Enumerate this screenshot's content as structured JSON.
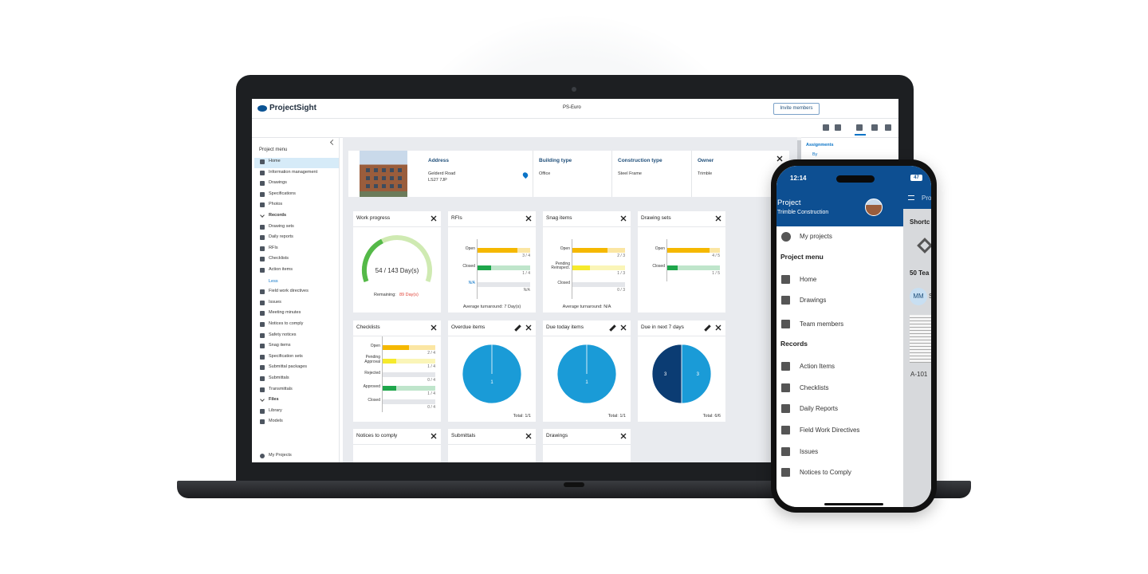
{
  "app": {
    "logo": "ProjectSight",
    "project": "PS-Euro",
    "invite": "Invite members"
  },
  "sidebar": {
    "title": "Project menu",
    "items": [
      {
        "text": "Home",
        "kind": "active"
      },
      {
        "text": "Information management",
        "kind": "item"
      },
      {
        "text": "Drawings",
        "kind": "item"
      },
      {
        "text": "Specifications",
        "kind": "item"
      },
      {
        "text": "Photos",
        "kind": "item"
      },
      {
        "text": "Records",
        "kind": "group"
      },
      {
        "text": "Drawing sets",
        "kind": "item"
      },
      {
        "text": "Daily reports",
        "kind": "item"
      },
      {
        "text": "RFIs",
        "kind": "item"
      },
      {
        "text": "Checklists",
        "kind": "item"
      },
      {
        "text": "Action items",
        "kind": "item"
      },
      {
        "text": "Less",
        "kind": "toggle"
      },
      {
        "text": "Field work directives",
        "kind": "item"
      },
      {
        "text": "Issues",
        "kind": "item"
      },
      {
        "text": "Meeting minutes",
        "kind": "item"
      },
      {
        "text": "Notices to comply",
        "kind": "item"
      },
      {
        "text": "Safety notices",
        "kind": "item"
      },
      {
        "text": "Snag items",
        "kind": "item"
      },
      {
        "text": "Specification sets",
        "kind": "item"
      },
      {
        "text": "Submittal packages",
        "kind": "item"
      },
      {
        "text": "Submittals",
        "kind": "item"
      },
      {
        "text": "Transmittals",
        "kind": "item"
      },
      {
        "text": "Files",
        "kind": "group"
      },
      {
        "text": "Library",
        "kind": "item"
      },
      {
        "text": "Models",
        "kind": "item"
      }
    ],
    "footer": "My Projects"
  },
  "project_info": {
    "fields": [
      {
        "label": "Address",
        "lines": [
          "Gelderd Road",
          "LS27 7JP"
        ]
      },
      {
        "label": "Building type",
        "lines": [
          "Office"
        ]
      },
      {
        "label": "Construction type",
        "lines": [
          "Steel Frame"
        ]
      },
      {
        "label": "Owner",
        "lines": [
          "Trimble"
        ]
      }
    ]
  },
  "right_panel": {
    "title": "Assignments",
    "by": "By"
  },
  "widgets": [
    {
      "title": "Work progress",
      "type": "gauge",
      "value": 54,
      "total": 143,
      "value_label": "54 / 143 Day(s)",
      "remaining_label": "Remaining:",
      "remaining": "89 Day(s)"
    },
    {
      "title": "RFIs",
      "type": "bars",
      "rows": [
        {
          "label": "Open",
          "value": 3,
          "total": 4,
          "value_label": "3 / 4",
          "color": "#f5b800",
          "track": "#fbe6a3"
        },
        {
          "label": "Closed",
          "value": 1,
          "total": 4,
          "value_label": "1 / 4",
          "color": "#1ea64b",
          "track": "#bfe5cb"
        },
        {
          "label": "N/A",
          "value": null,
          "total": null,
          "value_label": "N/A",
          "color": "#cfd3da",
          "track": "#e4e6ea"
        }
      ],
      "footer": "Average turnaround: 7 Day(s)"
    },
    {
      "title": "Snag items",
      "type": "bars",
      "rows": [
        {
          "label": "Open",
          "value": 2,
          "total": 3,
          "value_label": "2 / 3",
          "color": "#f5b800",
          "track": "#fbe6a3"
        },
        {
          "label": "Pending Reinspect.",
          "value": 1,
          "total": 3,
          "value_label": "1 / 3",
          "color": "#f6ea2c",
          "track": "#faf5b8"
        },
        {
          "label": "Closed",
          "value": 0,
          "total": 3,
          "value_label": "0 / 3",
          "color": "#1ea64b",
          "track": "#e4e6ea"
        }
      ],
      "footer": "Average turnaround: N/A"
    },
    {
      "title": "Drawing sets",
      "type": "bars",
      "rows": [
        {
          "label": "Open",
          "value": 4,
          "total": 5,
          "value_label": "4 / 5",
          "color": "#f5b800",
          "track": "#fbe6a3"
        },
        {
          "label": "Closed",
          "value": 1,
          "total": 5,
          "value_label": "1 / 5",
          "color": "#1ea64b",
          "track": "#bfe5cb"
        }
      ]
    },
    {
      "title": "Checklists",
      "type": "bars",
      "rows": [
        {
          "label": "Open",
          "value": 2,
          "total": 4,
          "value_label": "2 / 4",
          "color": "#f5b800",
          "track": "#fbe6a3"
        },
        {
          "label": "Pending Approval",
          "value": 1,
          "total": 4,
          "value_label": "1 / 4",
          "color": "#f6ea2c",
          "track": "#faf5b8"
        },
        {
          "label": "Rejected",
          "value": 0,
          "total": 4,
          "value_label": "0 / 4",
          "color": "#d9534f",
          "track": "#e4e6ea"
        },
        {
          "label": "Approved",
          "value": 1,
          "total": 4,
          "value_label": "1 / 4",
          "color": "#1ea64b",
          "track": "#bfe5cb"
        },
        {
          "label": "Closed",
          "value": 0,
          "total": 4,
          "value_label": "0 / 4",
          "color": "#1ea64b",
          "track": "#e4e6ea"
        }
      ]
    },
    {
      "title": "Overdue items",
      "type": "pie",
      "editable": true,
      "values": [
        1
      ],
      "colors": [
        "#1a9bd7"
      ],
      "footer": "Total: 1/1"
    },
    {
      "title": "Due today items",
      "type": "pie",
      "editable": true,
      "values": [
        1
      ],
      "colors": [
        "#1a9bd7"
      ],
      "footer": "Total: 1/1"
    },
    {
      "title": "Due in next 7 days",
      "type": "pie",
      "editable": true,
      "values": [
        3,
        3
      ],
      "colors": [
        "#1a9bd7",
        "#0b3c73"
      ],
      "footer": "Total: 6/6"
    },
    {
      "title": "Notices to comply",
      "type": "empty"
    },
    {
      "title": "Submittals",
      "type": "empty"
    },
    {
      "title": "Drawings",
      "type": "empty"
    }
  ],
  "phone": {
    "time": "12:14",
    "battery": "47",
    "title": "Project",
    "subtitle": "Trimble Construction",
    "back": "My projects",
    "items": [
      {
        "text": "Project menu",
        "kind": "group"
      },
      {
        "text": "Home",
        "kind": "item"
      },
      {
        "text": "Drawings",
        "kind": "item"
      },
      {
        "text": "Team members",
        "kind": "item"
      },
      {
        "text": "Records",
        "kind": "group"
      },
      {
        "text": "Action Items",
        "kind": "item"
      },
      {
        "text": "Checklists",
        "kind": "item"
      },
      {
        "text": "Daily Reports",
        "kind": "item"
      },
      {
        "text": "Field Work Directives",
        "kind": "item"
      },
      {
        "text": "Issues",
        "kind": "item"
      },
      {
        "text": "Notices to Comply",
        "kind": "item"
      }
    ],
    "behind": {
      "header": "Pro",
      "shortcuts": "Shortc",
      "team": "50 Tea",
      "initials": "MM",
      "member": "S",
      "sheet": "A-101"
    }
  }
}
